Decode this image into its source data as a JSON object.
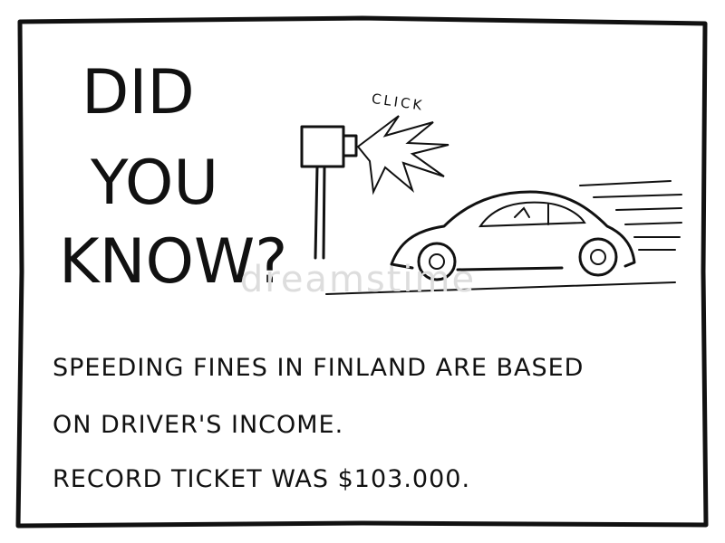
{
  "title": {
    "lines": [
      "DID",
      "YOU",
      "KNOW?"
    ]
  },
  "illustration": {
    "sound": "CLICK",
    "watermark": "dreamstime"
  },
  "fact": {
    "lines": [
      "SPEEDING FINES IN FINLAND ARE BASED",
      "ON DRIVER'S INCOME.",
      "RECORD TICKET WAS $103.000."
    ]
  }
}
